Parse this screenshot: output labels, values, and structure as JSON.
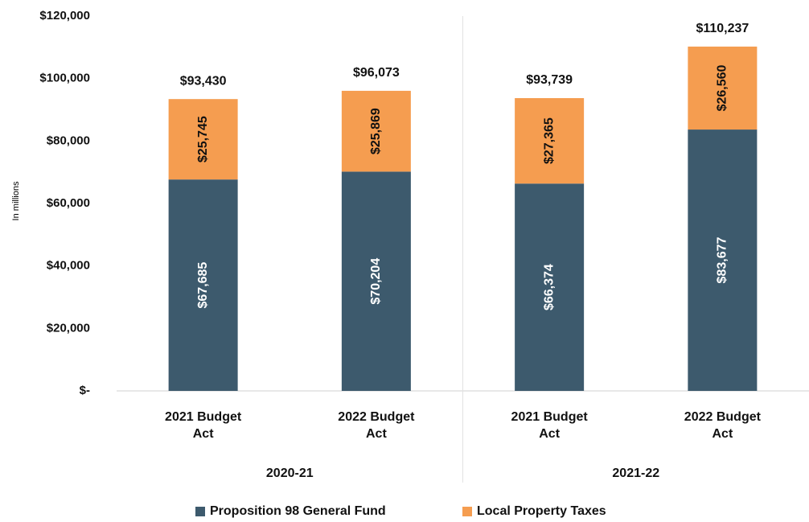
{
  "chart_data": {
    "type": "stacked-bar",
    "y_label": "In millions",
    "categories": [
      "2021 Budget Act",
      "2022 Budget Act",
      "2021 Budget Act",
      "2022 Budget Act"
    ],
    "groups": [
      "2020-21",
      "2021-22"
    ],
    "series": [
      {
        "name": "Proposition 98 General Fund",
        "color": "#3d5a6d",
        "values": [
          67685,
          70204,
          66374,
          83677
        ],
        "value_labels": [
          "$67,685",
          "$70,204",
          "$66,374",
          "$83,677"
        ]
      },
      {
        "name": "Local Property Taxes",
        "color": "#f59d50",
        "values": [
          25745,
          25869,
          27365,
          26560
        ],
        "value_labels": [
          "$25,745",
          "$25,869",
          "$27,365",
          "$26,560"
        ]
      }
    ],
    "totals": [
      93430,
      96073,
      93739,
      110237
    ],
    "total_labels": [
      "$93,430",
      "$96,073",
      "$93,739",
      "$110,237"
    ],
    "ylim": [
      0,
      120000
    ],
    "yticks": [
      {
        "value": 0,
        "label": "$-"
      },
      {
        "value": 20000,
        "label": "$20,000"
      },
      {
        "value": 40000,
        "label": "$40,000"
      },
      {
        "value": 60000,
        "label": "$60,000"
      },
      {
        "value": 80000,
        "label": "$80,000"
      },
      {
        "value": 100000,
        "label": "$100,000"
      },
      {
        "value": 120000,
        "label": "$120,000"
      }
    ],
    "legend": "bottom"
  }
}
